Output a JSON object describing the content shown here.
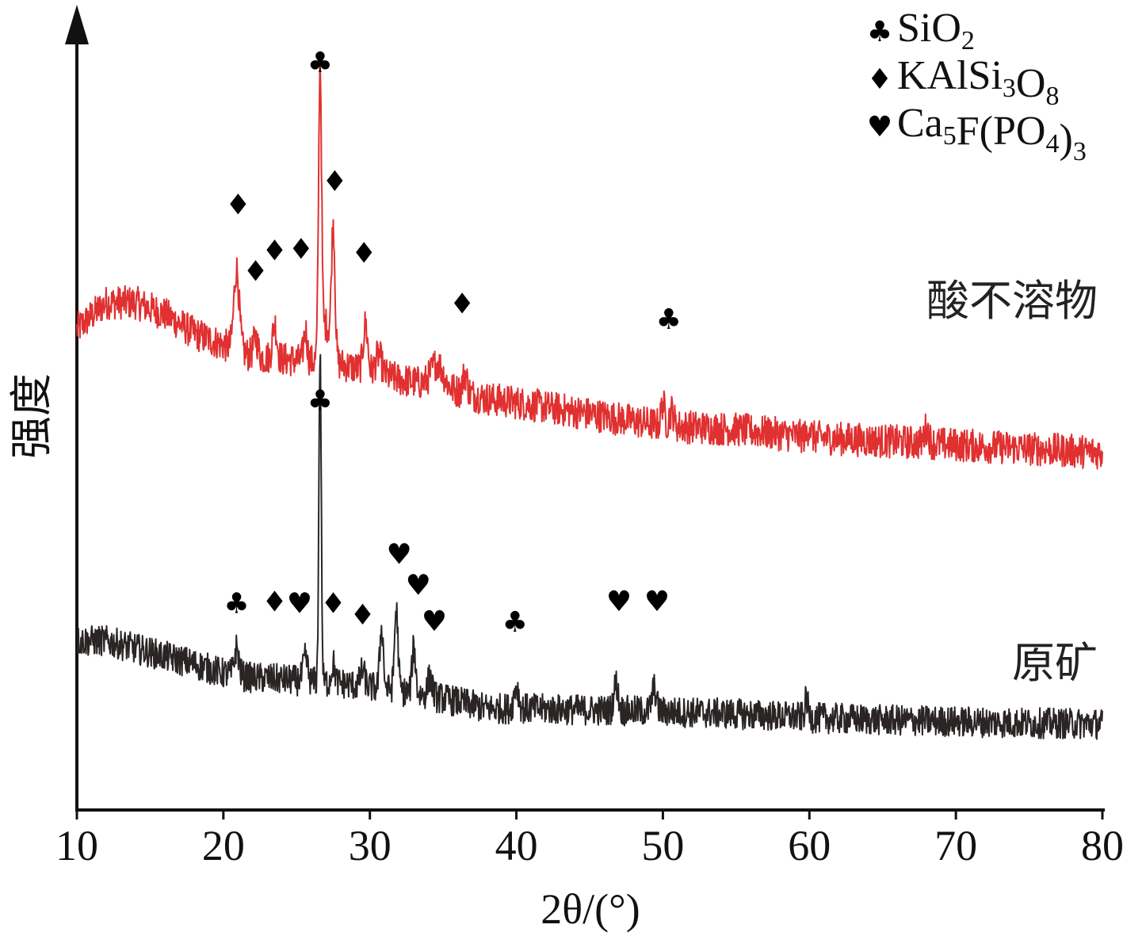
{
  "chart_data": {
    "type": "line",
    "xlabel": "2θ/(°)",
    "ylabel": "强度",
    "xlim": [
      10,
      80
    ],
    "x_ticks": [
      10,
      20,
      30,
      40,
      50,
      60,
      70,
      80
    ],
    "y_axis_values_shown": false,
    "y_unit": "arbitrary intensity (0-100, offset stacked)",
    "legend": {
      "placement": "top-right",
      "items": [
        {
          "symbol": "♣",
          "name": "SiO2",
          "text": "SiO",
          "sub": "2",
          "tail": ""
        },
        {
          "symbol": "♦",
          "name": "KAlSi3O8",
          "text": "KAlSi",
          "sub": "3",
          "tail": "O",
          "sub2": "8"
        },
        {
          "symbol": "♥",
          "name": "Ca5F(PO4)3",
          "text": "Ca",
          "sub": "5",
          "tail": "F(PO",
          "sub2": "4",
          "tail2": ")",
          "sub3": "3"
        }
      ]
    },
    "series": [
      {
        "name": "酸不溶物",
        "color": "#e03030",
        "noise": 2.2,
        "baseline": [
          [
            10,
            62.5
          ],
          [
            12,
            66
          ],
          [
            14,
            66
          ],
          [
            16,
            64.5
          ],
          [
            18,
            62
          ],
          [
            20,
            60.5
          ],
          [
            22,
            59
          ],
          [
            25,
            58.5
          ],
          [
            28,
            58
          ],
          [
            30,
            57
          ],
          [
            32,
            56
          ],
          [
            35,
            55
          ],
          [
            38,
            53.5
          ],
          [
            40,
            53
          ],
          [
            45,
            51.5
          ],
          [
            50,
            50
          ],
          [
            55,
            49.5
          ],
          [
            60,
            48.5
          ],
          [
            65,
            48
          ],
          [
            70,
            47.5
          ],
          [
            75,
            47
          ],
          [
            80,
            46.5
          ]
        ],
        "peaks": [
          {
            "x": 20.9,
            "h": 10.5,
            "w": 0.18
          },
          {
            "x": 22.2,
            "h": 2.5,
            "w": 0.15
          },
          {
            "x": 23.5,
            "h": 4.5,
            "w": 0.15
          },
          {
            "x": 25.6,
            "h": 4.0,
            "w": 0.12
          },
          {
            "x": 26.6,
            "h": 37.0,
            "w": 0.1
          },
          {
            "x": 27.0,
            "h": 5.0,
            "w": 0.3
          },
          {
            "x": 27.5,
            "h": 17.0,
            "w": 0.12
          },
          {
            "x": 29.7,
            "h": 6.0,
            "w": 0.15
          },
          {
            "x": 30.6,
            "h": 2.5,
            "w": 0.2
          },
          {
            "x": 34.6,
            "h": 3.0,
            "w": 0.4
          },
          {
            "x": 36.5,
            "h": 2.5,
            "w": 0.15
          },
          {
            "x": 50.0,
            "h": 3.0,
            "w": 0.12
          },
          {
            "x": 50.6,
            "h": 2.0,
            "w": 0.15
          },
          {
            "x": 60.0,
            "h": 1.5,
            "w": 0.1
          },
          {
            "x": 68.0,
            "h": 2.0,
            "w": 0.15
          }
        ],
        "markers": [
          {
            "x": 21.0,
            "y": 77.5,
            "symbol": "♦"
          },
          {
            "x": 22.2,
            "y": 68.8,
            "symbol": "♦"
          },
          {
            "x": 23.5,
            "y": 71.5,
            "symbol": "♦"
          },
          {
            "x": 25.3,
            "y": 71.7,
            "symbol": "♦"
          },
          {
            "x": 26.6,
            "y": 96.0,
            "symbol": "♣"
          },
          {
            "x": 27.6,
            "y": 80.5,
            "symbol": "♦"
          },
          {
            "x": 29.6,
            "y": 71.2,
            "symbol": "♦"
          },
          {
            "x": 36.3,
            "y": 64.6,
            "symbol": "♦"
          },
          {
            "x": 50.4,
            "y": 62.6,
            "symbol": "♣"
          }
        ]
      },
      {
        "name": "原矿",
        "color": "#2a2424",
        "noise": 2.0,
        "baseline": [
          [
            10,
            22
          ],
          [
            12,
            22
          ],
          [
            14,
            21
          ],
          [
            16,
            20
          ],
          [
            18,
            19
          ],
          [
            20,
            17.8
          ],
          [
            22,
            17.2
          ],
          [
            24,
            17
          ],
          [
            26,
            16.7
          ],
          [
            28,
            16.5
          ],
          [
            30,
            16
          ],
          [
            32,
            15.5
          ],
          [
            35,
            14.5
          ],
          [
            38,
            13.2
          ],
          [
            40,
            13.2
          ],
          [
            45,
            13
          ],
          [
            50,
            12.8
          ],
          [
            55,
            12.5
          ],
          [
            60,
            12.0
          ],
          [
            65,
            11.7
          ],
          [
            70,
            11.5
          ],
          [
            75,
            11.3
          ],
          [
            80,
            11.2
          ]
        ],
        "peaks": [
          {
            "x": 20.9,
            "h": 3.5,
            "w": 0.15
          },
          {
            "x": 25.6,
            "h": 3.0,
            "w": 0.15
          },
          {
            "x": 26.6,
            "h": 43.0,
            "w": 0.08
          },
          {
            "x": 27.5,
            "h": 2.5,
            "w": 0.12
          },
          {
            "x": 29.5,
            "h": 2.0,
            "w": 0.15
          },
          {
            "x": 30.8,
            "h": 8.0,
            "w": 0.12
          },
          {
            "x": 31.8,
            "h": 10.5,
            "w": 0.12
          },
          {
            "x": 33.0,
            "h": 6.0,
            "w": 0.12
          },
          {
            "x": 34.1,
            "h": 2.5,
            "w": 0.15
          },
          {
            "x": 40.0,
            "h": 3.0,
            "w": 0.15
          },
          {
            "x": 46.8,
            "h": 3.5,
            "w": 0.15
          },
          {
            "x": 49.4,
            "h": 3.0,
            "w": 0.15
          },
          {
            "x": 59.8,
            "h": 2.5,
            "w": 0.1
          }
        ],
        "markers": [
          {
            "x": 20.9,
            "y": 25.6,
            "symbol": "♣"
          },
          {
            "x": 23.5,
            "y": 25.8,
            "symbol": "♦"
          },
          {
            "x": 25.2,
            "y": 25.6,
            "symbol": "♥"
          },
          {
            "x": 27.5,
            "y": 25.6,
            "symbol": "♦"
          },
          {
            "x": 26.6,
            "y": 52.0,
            "symbol": "♣"
          },
          {
            "x": 29.5,
            "y": 24.1,
            "symbol": "♦"
          },
          {
            "x": 32.0,
            "y": 32.0,
            "symbol": "♥"
          },
          {
            "x": 33.3,
            "y": 28.0,
            "symbol": "♥"
          },
          {
            "x": 34.4,
            "y": 23.3,
            "symbol": "♥"
          },
          {
            "x": 39.9,
            "y": 23.2,
            "symbol": "♣"
          },
          {
            "x": 47.0,
            "y": 25.9,
            "symbol": "♥"
          },
          {
            "x": 49.6,
            "y": 25.9,
            "symbol": "♥"
          }
        ]
      }
    ]
  }
}
